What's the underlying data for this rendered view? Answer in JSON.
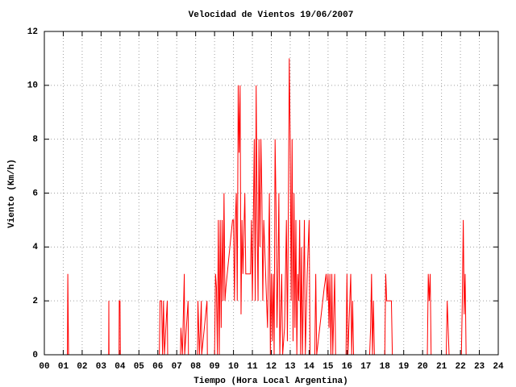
{
  "chart_data": {
    "type": "line",
    "title": "Velocidad de Vientos 19/06/2007",
    "x_label": "Tiempo (Hora Local Argentina)",
    "y_label": "Viento (Km/h)",
    "xlim": [
      0,
      24
    ],
    "ylim": [
      0,
      12
    ],
    "xticks": [
      {
        "value": 0,
        "label": "00"
      },
      {
        "value": 1,
        "label": "01"
      },
      {
        "value": 2,
        "label": "02"
      },
      {
        "value": 3,
        "label": "03"
      },
      {
        "value": 4,
        "label": "04"
      },
      {
        "value": 5,
        "label": "05"
      },
      {
        "value": 6,
        "label": "06"
      },
      {
        "value": 7,
        "label": "07"
      },
      {
        "value": 8,
        "label": "08"
      },
      {
        "value": 9,
        "label": "09"
      },
      10,
      11,
      12,
      13,
      14,
      15,
      16,
      17,
      18,
      19,
      20,
      21,
      22,
      23,
      24
    ],
    "yticks": [
      0,
      2,
      4,
      6,
      8,
      10,
      12
    ],
    "grid": true,
    "series": [
      {
        "color": "#ff0000",
        "x": [
          0,
          1.22,
          1.24,
          1.26,
          1.28,
          3.4,
          3.41,
          3.42,
          3.95,
          3.96,
          4.0,
          4.02,
          6.08,
          6.1,
          6.12,
          6.2,
          6.25,
          6.3,
          6.35,
          6.5,
          6.52,
          7.2,
          7.22,
          7.3,
          7.4,
          7.42,
          7.6,
          7.62,
          8.1,
          8.12,
          8.2,
          8.3,
          8.32,
          8.6,
          8.62,
          9.0,
          9.05,
          9.1,
          9.15,
          9.2,
          9.25,
          9.3,
          9.35,
          9.4,
          9.45,
          9.5,
          9.55,
          9.6,
          9.95,
          10.0,
          10.05,
          10.1,
          10.15,
          10.2,
          10.25,
          10.3,
          10.35,
          10.4,
          10.45,
          10.5,
          10.6,
          10.65,
          10.9,
          10.95,
          11.0,
          11.05,
          11.1,
          11.15,
          11.2,
          11.25,
          11.3,
          11.35,
          11.4,
          11.45,
          11.5,
          11.55,
          11.6,
          11.7,
          11.8,
          11.9,
          11.95,
          12.0,
          12.05,
          12.1,
          12.15,
          12.2,
          12.25,
          12.3,
          12.35,
          12.4,
          12.45,
          12.55,
          12.6,
          12.7,
          12.8,
          12.85,
          12.9,
          12.95,
          13.0,
          13.05,
          13.1,
          13.15,
          13.2,
          13.25,
          13.3,
          13.35,
          13.4,
          13.45,
          13.5,
          13.55,
          13.6,
          13.65,
          13.75,
          13.8,
          13.9,
          14.0,
          14.05,
          14.3,
          14.35,
          14.4,
          14.8,
          14.9,
          14.95,
          15.0,
          15.05,
          15.1,
          15.15,
          15.2,
          15.25,
          15.35,
          15.4,
          15.95,
          16.0,
          16.05,
          16.2,
          16.25,
          16.3,
          16.35,
          17.2,
          17.25,
          17.3,
          17.35,
          17.4,
          17.45,
          18.0,
          18.05,
          18.1,
          18.35,
          18.4,
          20.25,
          20.3,
          20.35,
          20.4,
          20.45,
          21.25,
          21.3,
          21.35,
          21.4,
          22.05,
          22.1,
          22.15,
          22.2,
          22.25,
          22.3
        ],
        "values": [
          0,
          0,
          3,
          1.5,
          0,
          0,
          2,
          0,
          0,
          2,
          2,
          0,
          0,
          1,
          2,
          2,
          0,
          2,
          0,
          2,
          0,
          0,
          1,
          0,
          3,
          0,
          2,
          0,
          0,
          2,
          0,
          2,
          0,
          2,
          0,
          0,
          3,
          2.5,
          0,
          5,
          0,
          5,
          1,
          5,
          2,
          6,
          2,
          2.5,
          5,
          5,
          2,
          5,
          6,
          2,
          10,
          7.5,
          10,
          1.5,
          5,
          3,
          6,
          3,
          3,
          5,
          2,
          5,
          8,
          2,
          10,
          5,
          2,
          8,
          4,
          8,
          6,
          2,
          5,
          3,
          1,
          6,
          0,
          3,
          0.5,
          3,
          0,
          8,
          5.5,
          1,
          3,
          6,
          0,
          3,
          0,
          1,
          5,
          0.5,
          5,
          11,
          8,
          2,
          8,
          0.5,
          6,
          1,
          5,
          0,
          3,
          2,
          5,
          0,
          4,
          0,
          5,
          0,
          3,
          5,
          0,
          0,
          3,
          0,
          2.5,
          3,
          2,
          3,
          1,
          3,
          0,
          3,
          0,
          3,
          0,
          0,
          3,
          0,
          3,
          0,
          2,
          0,
          0,
          1,
          3,
          0,
          2,
          0,
          0,
          3,
          2,
          2,
          0,
          0,
          3,
          2,
          3,
          0,
          0,
          2,
          1,
          0,
          0,
          2,
          5,
          1.5,
          3,
          0
        ]
      }
    ]
  }
}
